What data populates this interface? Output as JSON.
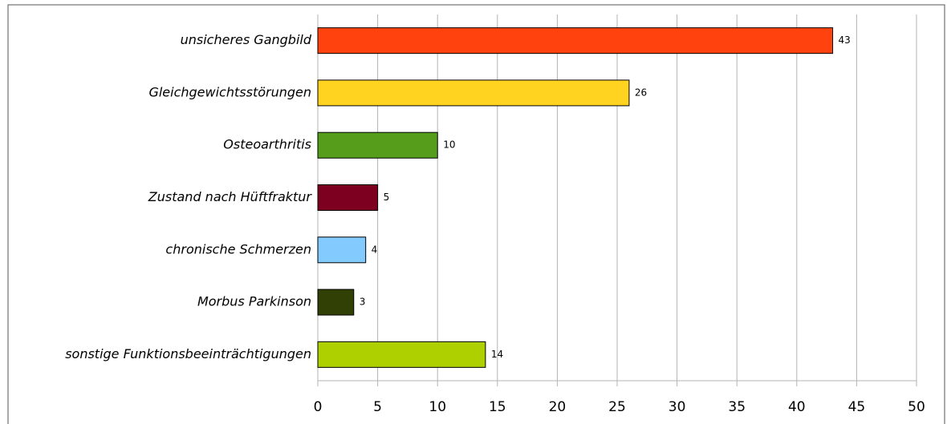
{
  "chart_data": {
    "type": "bar",
    "orientation": "horizontal",
    "categories": [
      "unsicheres Gangbild",
      "Gleichgewichtsstörungen",
      "Osteoarthritis",
      "Zustand nach Hüftfraktur",
      "chronische Schmerzen",
      "Morbus Parkinson",
      "sonstige Funktionsbeeinträchtigungen"
    ],
    "values": [
      43,
      26,
      10,
      5,
      4,
      3,
      14
    ],
    "colors": [
      "#ff420e",
      "#ffd320",
      "#579d1c",
      "#7e0021",
      "#83caff",
      "#314004",
      "#aecf00"
    ],
    "xlim": [
      0,
      50
    ],
    "xticks": [
      0,
      5,
      10,
      15,
      20,
      25,
      30,
      35,
      40,
      45,
      50
    ],
    "grid": true
  }
}
